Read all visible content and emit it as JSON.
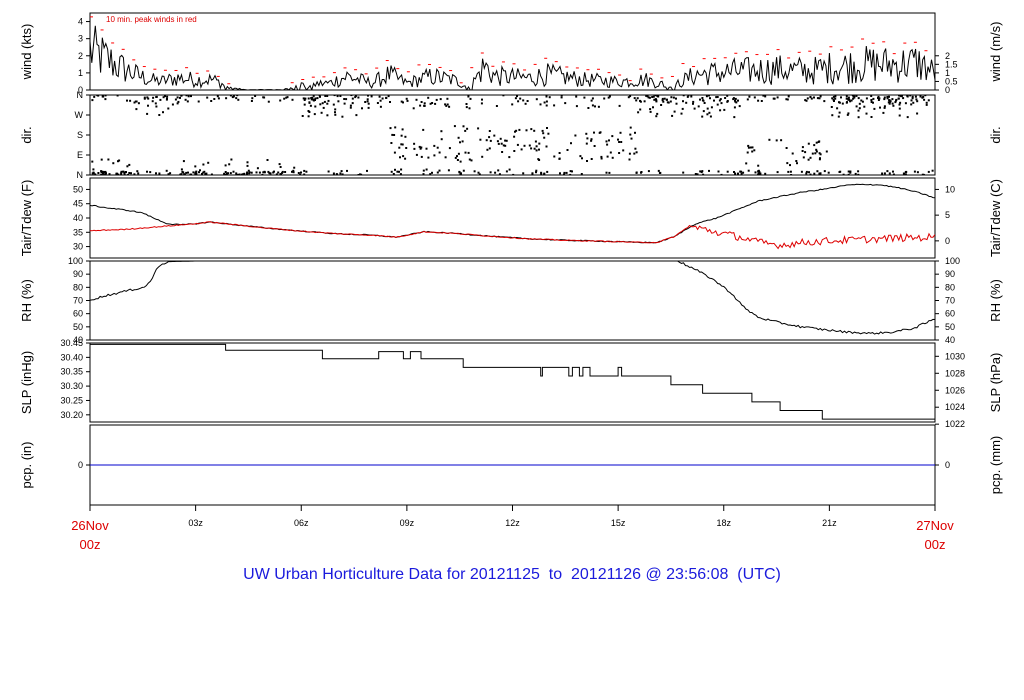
{
  "footer_title": "UW Urban Horticulture Data for 20121125  to  20121126 @ 23:56:08  (UTC)",
  "chart_data": {
    "type": "line",
    "x_axis": {
      "unit": "hours UTC",
      "range": [
        0,
        24
      ],
      "ticks": [
        {
          "h": 0,
          "label": "26Nov",
          "sub": "00z",
          "red": true
        },
        {
          "h": 3,
          "label": "03z"
        },
        {
          "h": 6,
          "label": "06z"
        },
        {
          "h": 9,
          "label": "09z"
        },
        {
          "h": 12,
          "label": "12z"
        },
        {
          "h": 15,
          "label": "15z"
        },
        {
          "h": 18,
          "label": "18z"
        },
        {
          "h": 21,
          "label": "21z"
        },
        {
          "h": 24,
          "label": "27Nov",
          "sub": "00z",
          "red": true
        }
      ]
    },
    "panels": [
      {
        "id": "wind",
        "left_label": "wind (kts)",
        "right_label": "wind (m/s)",
        "ylim": [
          0,
          4.5
        ],
        "left_ticks": [
          "0",
          "1",
          "2",
          "3",
          "4"
        ],
        "right_ticks": [
          {
            "v": 0,
            "t": "0"
          },
          {
            "v": 0.5,
            "t": "0.5"
          },
          {
            "v": 1,
            "t": "1"
          },
          {
            "v": 1.5,
            "t": "1.5"
          },
          {
            "v": 2,
            "t": "2"
          }
        ],
        "annotation": "10 min. peak winds in red",
        "series": [
          {
            "role": "wind",
            "color": "#000000",
            "profile": [
              [
                0,
                2.3
              ],
              [
                0.3,
                2.0
              ],
              [
                0.8,
                1.4
              ],
              [
                1.3,
                0.9
              ],
              [
                1.7,
                0.6
              ],
              [
                2.0,
                0.5
              ],
              [
                2.5,
                0.7
              ],
              [
                3.0,
                0.6
              ],
              [
                3.5,
                0.6
              ],
              [
                4.0,
                0.1
              ],
              [
                4.4,
                0.02
              ],
              [
                5.5,
                0.02
              ],
              [
                6.0,
                0.3
              ],
              [
                6.8,
                0.4
              ],
              [
                7.3,
                0.8
              ],
              [
                8.0,
                0.4
              ],
              [
                8.5,
                0.9
              ],
              [
                9.0,
                0.4
              ],
              [
                9.7,
                0.8
              ],
              [
                10.3,
                0.6
              ],
              [
                10.8,
                0.2
              ],
              [
                11.2,
                1.4
              ],
              [
                11.5,
                0.8
              ],
              [
                12.5,
                0.7
              ],
              [
                13.0,
                0.9
              ],
              [
                14.0,
                0.6
              ],
              [
                15.0,
                0.5
              ],
              [
                15.8,
                0.6
              ],
              [
                16.5,
                0.2
              ],
              [
                17.2,
                0.9
              ],
              [
                17.8,
                1.0
              ],
              [
                18.5,
                1.1
              ],
              [
                19.5,
                1.2
              ],
              [
                20.5,
                1.1
              ],
              [
                21.0,
                1.3
              ],
              [
                22.0,
                1.5
              ],
              [
                23.0,
                1.5
              ],
              [
                23.5,
                1.6
              ],
              [
                24.0,
                1.0
              ]
            ]
          },
          {
            "role": "peak",
            "name": "10 min. peak winds",
            "color": "#ff0000"
          }
        ]
      },
      {
        "id": "dir",
        "left_label": "dir.",
        "right_label": "dir.",
        "ylim": [
          0,
          360
        ],
        "left_ticks": [
          {
            "v": 0,
            "t": "N"
          },
          {
            "v": 90,
            "t": "E"
          },
          {
            "v": 180,
            "t": "S"
          },
          {
            "v": 270,
            "t": "W"
          },
          {
            "v": 360,
            "t": "N"
          }
        ],
        "series": [
          {
            "role": "direction",
            "color": "#000000"
          }
        ]
      },
      {
        "id": "temp",
        "left_label": "Tair/Tdew (F)",
        "right_label": "Tair/Tdew (C)",
        "ylim": [
          26,
          54
        ],
        "left_ticks": [
          "30",
          "35",
          "40",
          "45",
          "50"
        ],
        "right_ticks": [
          {
            "v": 32,
            "t": "0"
          },
          {
            "v": 41,
            "t": "5"
          },
          {
            "v": 50,
            "t": "10"
          }
        ],
        "series": [
          {
            "name": "Tair",
            "color": "#000000",
            "points": [
              [
                0,
                44.5
              ],
              [
                0.5,
                43.5
              ],
              [
                1.0,
                42.8
              ],
              [
                1.5,
                41.8
              ],
              [
                1.8,
                40.0
              ],
              [
                2.2,
                38.0
              ],
              [
                2.6,
                37.6
              ],
              [
                3.0,
                38.0
              ],
              [
                3.4,
                38.6
              ],
              [
                4.0,
                37.8
              ],
              [
                5.0,
                36.5
              ],
              [
                6.0,
                35.4
              ],
              [
                7.0,
                34.5
              ],
              [
                8.0,
                34.0
              ],
              [
                8.7,
                33.3
              ],
              [
                9.5,
                35.2
              ],
              [
                10.5,
                34.5
              ],
              [
                11.5,
                33.5
              ],
              [
                12.5,
                32.7
              ],
              [
                13.5,
                32.2
              ],
              [
                14.5,
                31.9
              ],
              [
                15.5,
                31.5
              ],
              [
                16.1,
                31.4
              ],
              [
                16.6,
                33.5
              ],
              [
                17.2,
                38.0
              ],
              [
                17.8,
                40.0
              ],
              [
                18.4,
                43.0
              ],
              [
                19.0,
                46.0
              ],
              [
                19.6,
                47.5
              ],
              [
                20.2,
                49.0
              ],
              [
                20.8,
                50.0
              ],
              [
                21.5,
                51.5
              ],
              [
                22.0,
                51.8
              ],
              [
                22.5,
                51.5
              ],
              [
                23.0,
                50.5
              ],
              [
                23.5,
                49.0
              ],
              [
                24.0,
                47.0
              ]
            ]
          },
          {
            "name": "Tdew",
            "color": "#dd0000",
            "points": [
              [
                0,
                35.5
              ],
              [
                0.5,
                35.8
              ],
              [
                1.0,
                36.0
              ],
              [
                1.5,
                36.5
              ],
              [
                2.0,
                37.0
              ],
              [
                2.5,
                37.5
              ],
              [
                3.0,
                38.0
              ],
              [
                3.4,
                38.6
              ],
              [
                4.0,
                37.8
              ],
              [
                5.0,
                36.5
              ],
              [
                6.0,
                35.4
              ],
              [
                7.0,
                34.5
              ],
              [
                8.0,
                34.0
              ],
              [
                8.7,
                33.3
              ],
              [
                9.5,
                35.2
              ],
              [
                10.5,
                34.5
              ],
              [
                11.5,
                33.5
              ],
              [
                12.5,
                32.7
              ],
              [
                13.5,
                32.2
              ],
              [
                14.5,
                31.9
              ],
              [
                15.5,
                31.5
              ],
              [
                16.1,
                31.4
              ],
              [
                16.6,
                33.5
              ],
              [
                17.0,
                37.0
              ],
              [
                17.4,
                36.2
              ],
              [
                17.8,
                35.0
              ],
              [
                18.4,
                33.5
              ],
              [
                19.0,
                31.5
              ],
              [
                19.6,
                30.5
              ],
              [
                20.3,
                31.5
              ],
              [
                21.0,
                32.0
              ],
              [
                22.0,
                32.5
              ],
              [
                23.0,
                33.0
              ],
              [
                24.0,
                33.3
              ]
            ]
          }
        ]
      },
      {
        "id": "rh",
        "left_label": "RH (%)",
        "right_label": "RH (%)",
        "ylim": [
          40,
          100
        ],
        "left_ticks": [
          "40",
          "50",
          "60",
          "70",
          "80",
          "90",
          "100"
        ],
        "right_ticks": [
          {
            "v": 40,
            "t": "40"
          },
          {
            "v": 50,
            "t": "50"
          },
          {
            "v": 60,
            "t": "60"
          },
          {
            "v": 70,
            "t": "70"
          },
          {
            "v": 80,
            "t": "80"
          },
          {
            "v": 90,
            "t": "90"
          },
          {
            "v": 100,
            "t": "100"
          }
        ],
        "series": [
          {
            "name": "RH",
            "color": "#000000",
            "points": [
              [
                0,
                70.5
              ],
              [
                0.5,
                74
              ],
              [
                1.0,
                77
              ],
              [
                1.5,
                80
              ],
              [
                1.6,
                81
              ],
              [
                1.75,
                86
              ],
              [
                1.85,
                92
              ],
              [
                2.0,
                97
              ],
              [
                2.2,
                99.5
              ],
              [
                3.0,
                100
              ],
              [
                16.7,
                100
              ],
              [
                17.0,
                96
              ],
              [
                17.3,
                92
              ],
              [
                17.7,
                86
              ],
              [
                18.2,
                76
              ],
              [
                18.6,
                64
              ],
              [
                19.0,
                57
              ],
              [
                19.6,
                53
              ],
              [
                20.2,
                50
              ],
              [
                20.8,
                48
              ],
              [
                21.5,
                46
              ],
              [
                22.2,
                45
              ],
              [
                22.8,
                46
              ],
              [
                23.4,
                49
              ],
              [
                24.0,
                56
              ]
            ]
          }
        ]
      },
      {
        "id": "slp",
        "left_label": "SLP (inHg)",
        "right_label": "SLP (hPa)",
        "ylim": [
          30.175,
          30.45
        ],
        "left_ticks": [
          "30.20",
          "30.25",
          "30.30",
          "30.35",
          "30.40",
          "30.45"
        ],
        "right_ticks": [
          {
            "v": 30.1675,
            "t": "1022"
          },
          {
            "v": 30.2265,
            "t": "1024"
          },
          {
            "v": 30.2855,
            "t": "1026"
          },
          {
            "v": 30.3446,
            "t": "1028"
          },
          {
            "v": 30.4037,
            "t": "1030"
          }
        ],
        "series": [
          {
            "name": "SLP",
            "color": "#000000",
            "points": [
              [
                0,
                30.445
              ],
              [
                3.85,
                30.445
              ],
              [
                3.85,
                30.425
              ],
              [
                6.6,
                30.425
              ],
              [
                6.6,
                30.395
              ],
              [
                8.2,
                30.395
              ],
              [
                8.2,
                30.42
              ],
              [
                8.9,
                30.42
              ],
              [
                8.9,
                30.395
              ],
              [
                9.1,
                30.395
              ],
              [
                9.1,
                30.42
              ],
              [
                9.4,
                30.42
              ],
              [
                9.4,
                30.395
              ],
              [
                10.6,
                30.395
              ],
              [
                10.6,
                30.365
              ],
              [
                12.8,
                30.365
              ],
              [
                12.8,
                30.335
              ],
              [
                12.85,
                30.335
              ],
              [
                12.85,
                30.365
              ],
              [
                13.6,
                30.365
              ],
              [
                13.6,
                30.335
              ],
              [
                13.7,
                30.335
              ],
              [
                13.7,
                30.365
              ],
              [
                13.9,
                30.365
              ],
              [
                13.9,
                30.335
              ],
              [
                14.0,
                30.335
              ],
              [
                14.0,
                30.365
              ],
              [
                14.2,
                30.365
              ],
              [
                14.2,
                30.335
              ],
              [
                15.0,
                30.335
              ],
              [
                15.0,
                30.365
              ],
              [
                15.1,
                30.365
              ],
              [
                15.1,
                30.335
              ],
              [
                16.5,
                30.335
              ],
              [
                16.5,
                30.305
              ],
              [
                17.4,
                30.305
              ],
              [
                17.4,
                30.275
              ],
              [
                18.8,
                30.275
              ],
              [
                18.8,
                30.245
              ],
              [
                19.6,
                30.245
              ],
              [
                19.6,
                30.215
              ],
              [
                20.8,
                30.215
              ],
              [
                20.8,
                30.185
              ],
              [
                24.0,
                30.185
              ]
            ]
          }
        ]
      },
      {
        "id": "pcp",
        "left_label": "pcp. (in)",
        "right_label": "pcp. (mm)",
        "ylim": [
          -1,
          1
        ],
        "left_ticks": [
          "0"
        ],
        "right_ticks": [
          {
            "v": 0,
            "t": "0"
          }
        ],
        "series": [
          {
            "name": "precipitation",
            "color": "#0000cc",
            "points": [
              [
                0,
                0
              ],
              [
                24,
                0
              ]
            ]
          }
        ]
      }
    ]
  }
}
